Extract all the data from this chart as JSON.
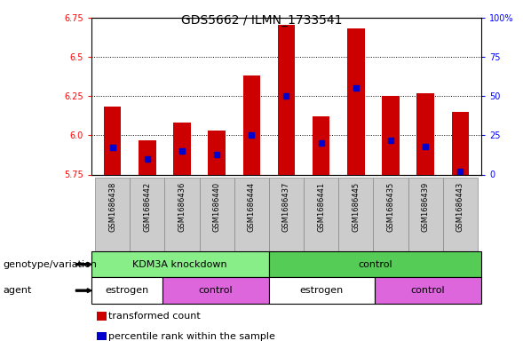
{
  "title": "GDS5662 / ILMN_1733541",
  "samples": [
    "GSM1686438",
    "GSM1686442",
    "GSM1686436",
    "GSM1686440",
    "GSM1686444",
    "GSM1686437",
    "GSM1686441",
    "GSM1686445",
    "GSM1686435",
    "GSM1686439",
    "GSM1686443"
  ],
  "transformed_count": [
    6.18,
    5.97,
    6.08,
    6.03,
    6.38,
    6.7,
    6.12,
    6.68,
    6.25,
    6.27,
    6.15
  ],
  "percentile_rank": [
    17,
    10,
    15,
    13,
    25,
    50,
    20,
    55,
    22,
    18,
    2
  ],
  "y_min": 5.75,
  "y_max": 6.75,
  "y_ticks_left": [
    5.75,
    6.0,
    6.25,
    6.5,
    6.75
  ],
  "y_ticks_right": [
    0,
    25,
    50,
    75,
    100
  ],
  "bar_color": "#cc0000",
  "percentile_color": "#0000cc",
  "genotype_groups": [
    {
      "label": "KDM3A knockdown",
      "start": 0,
      "end": 5,
      "color": "#88ee88"
    },
    {
      "label": "control",
      "start": 5,
      "end": 11,
      "color": "#55cc55"
    }
  ],
  "agent_groups": [
    {
      "label": "estrogen",
      "start": 0,
      "end": 2,
      "color": "#ffffff"
    },
    {
      "label": "control",
      "start": 2,
      "end": 5,
      "color": "#dd66dd"
    },
    {
      "label": "estrogen",
      "start": 5,
      "end": 8,
      "color": "#ffffff"
    },
    {
      "label": "control",
      "start": 8,
      "end": 11,
      "color": "#dd66dd"
    }
  ],
  "legend_items": [
    {
      "label": "transformed count",
      "color": "#cc0000"
    },
    {
      "label": "percentile rank within the sample",
      "color": "#0000cc"
    }
  ],
  "title_fontsize": 10,
  "tick_fontsize": 7,
  "bar_width": 0.5,
  "sample_label_fontsize": 6,
  "row_label_fontsize": 8,
  "group_label_fontsize": 8,
  "legend_fontsize": 8
}
